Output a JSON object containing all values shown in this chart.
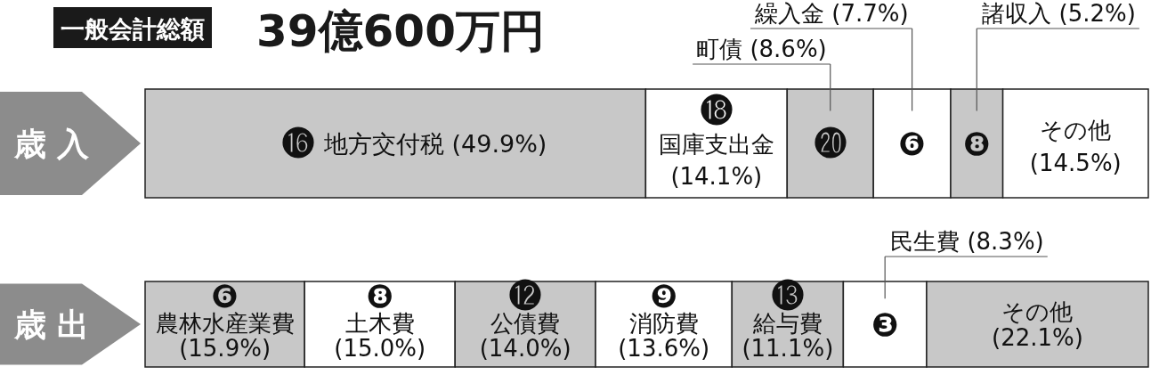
{
  "chart_data": [
    {
      "type": "bar",
      "orientation": "horizontal",
      "stacked": true,
      "title": "一般会計総額",
      "subtitle": "39億600万円",
      "categories": [
        "歳 入"
      ],
      "series": [
        {
          "name": "地方交付税",
          "color": "#c8c8c8",
          "values": [
            49.9
          ],
          "value_labels": [
            "(49.9%)"
          ]
        },
        {
          "name": "国庫支出金",
          "color": "#ffffff",
          "values": [
            14.1
          ],
          "value_labels": [
            "(14.1%)"
          ]
        },
        {
          "name": "町債",
          "color": "#c8c8c8",
          "values": [
            8.6
          ],
          "value_labels": [
            "(8.6%)"
          ]
        },
        {
          "name": "繰入金",
          "color": "#ffffff",
          "values": [
            7.7
          ],
          "value_labels": [
            "(7.7%)"
          ]
        },
        {
          "name": "諸収入",
          "color": "#c8c8c8",
          "values": [
            5.2
          ],
          "value_labels": [
            "(5.2%)"
          ]
        },
        {
          "name": "その他",
          "color": "#ffffff",
          "values": [
            14.5
          ],
          "value_labels": [
            "(14.5%)"
          ]
        }
      ],
      "annotations": [
        "⓰",
        "⓲",
        "⓴",
        "❻",
        "❽"
      ]
    },
    {
      "type": "bar",
      "orientation": "horizontal",
      "stacked": true,
      "categories": [
        "歳 出"
      ],
      "series": [
        {
          "name": "農林水産業費",
          "color": "#c8c8c8",
          "values": [
            15.9
          ],
          "value_labels": [
            "(15.9%)"
          ]
        },
        {
          "name": "土木費",
          "color": "#ffffff",
          "values": [
            15.0
          ],
          "value_labels": [
            "(15.0%)"
          ]
        },
        {
          "name": "公債費",
          "color": "#c8c8c8",
          "values": [
            14.0
          ],
          "value_labels": [
            "(14.0%)"
          ]
        },
        {
          "name": "消防費",
          "color": "#ffffff",
          "values": [
            13.6
          ],
          "value_labels": [
            "(13.6%)"
          ]
        },
        {
          "name": "給与費",
          "color": "#c8c8c8",
          "values": [
            11.1
          ],
          "value_labels": [
            "(11.1%)"
          ]
        },
        {
          "name": "民生費",
          "color": "#ffffff",
          "values": [
            8.3
          ],
          "value_labels": [
            "(8.3%)"
          ]
        },
        {
          "name": "その他",
          "color": "#c8c8c8",
          "values": [
            22.1
          ],
          "value_labels": [
            "(22.1%)"
          ]
        }
      ],
      "annotations": [
        "❻",
        "❽",
        "⓬",
        "❾",
        "⓭",
        "❸"
      ]
    }
  ]
}
